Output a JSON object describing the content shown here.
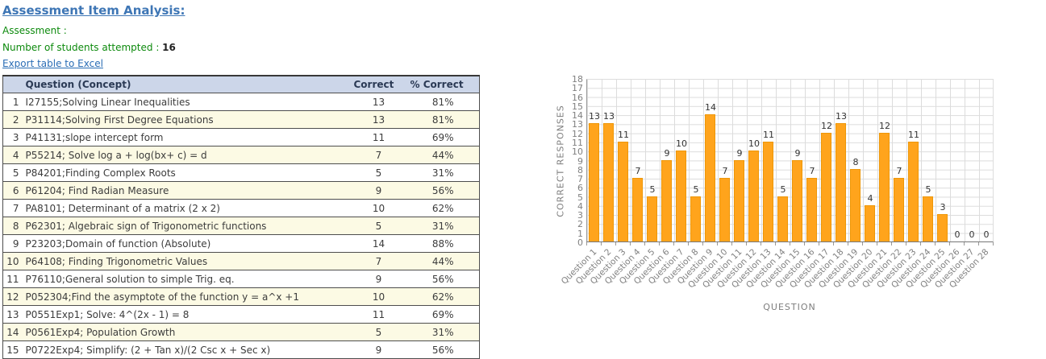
{
  "page": {
    "title": "Assessment Item Analysis:",
    "assessment_label": "Assessment :",
    "attempted_label": "Number of students attempted : ",
    "attempted_count": "16",
    "export_link": "Export table to Excel"
  },
  "colors": {
    "title_blue": "#3E76B5",
    "info_green": "#0D8A0D",
    "link_blue": "#2A6DB5",
    "table_header_bg": "#CCD6E9",
    "row_alt_bg": "#FCFAE4",
    "bar_orange": "#FFA41C"
  },
  "table": {
    "headers": {
      "question": "Question (Concept)",
      "correct": "Correct",
      "percent": "% Correct"
    },
    "rows": [
      {
        "num": "1",
        "question": "I27155;Solving Linear Inequalities",
        "correct": "13",
        "percent": "81%"
      },
      {
        "num": "2",
        "question": "P31114;Solving First Degree Equations",
        "correct": "13",
        "percent": "81%"
      },
      {
        "num": "3",
        "question": "P41131;slope intercept form",
        "correct": "11",
        "percent": "69%"
      },
      {
        "num": "4",
        "question": "P55214; Solve log a + log(bx+ c) = d",
        "correct": "7",
        "percent": "44%"
      },
      {
        "num": "5",
        "question": "P84201;Finding Complex Roots",
        "correct": "5",
        "percent": "31%"
      },
      {
        "num": "6",
        "question": "P61204; Find Radian Measure",
        "correct": "9",
        "percent": "56%"
      },
      {
        "num": "7",
        "question": "PA8101; Determinant of a matrix (2 x 2)",
        "correct": "10",
        "percent": "62%"
      },
      {
        "num": "8",
        "question": "P62301; Algebraic sign of Trigonometric functions",
        "correct": "5",
        "percent": "31%"
      },
      {
        "num": "9",
        "question": "P23203;Domain of function (Absolute)",
        "correct": "14",
        "percent": "88%"
      },
      {
        "num": "10",
        "question": "P64108; Finding Trigonometric Values",
        "correct": "7",
        "percent": "44%"
      },
      {
        "num": "11",
        "question": "P76110;General solution to simple Trig. eq.",
        "correct": "9",
        "percent": "56%"
      },
      {
        "num": "12",
        "question": "P052304;Find the asymptote of the function y = a^x +1",
        "correct": "10",
        "percent": "62%"
      },
      {
        "num": "13",
        "question": "P0551Exp1; Solve: 4^(2x - 1) = 8",
        "correct": "11",
        "percent": "69%"
      },
      {
        "num": "14",
        "question": "P0561Exp4; Population Growth",
        "correct": "5",
        "percent": "31%"
      },
      {
        "num": "15",
        "question": "P0722Exp4; Simplify: (2 + Tan x)/(2 Csc x + Sec x)",
        "correct": "9",
        "percent": "56%"
      }
    ]
  },
  "chart_data": {
    "type": "bar",
    "title": "",
    "xlabel": "QUESTION",
    "ylabel": "CORRECT RESPONSES",
    "categories": [
      "Question 1",
      "Question 2",
      "Question 3",
      "Question 4",
      "Question 5",
      "Question 6",
      "Question 7",
      "Question 8",
      "Question 9",
      "Question 10",
      "Question 11",
      "Question 12",
      "Question 13",
      "Question 14",
      "Question 15",
      "Question 16",
      "Question 17",
      "Question 18",
      "Question 19",
      "Question 20",
      "Question 21",
      "Question 22",
      "Question 23",
      "Question 24",
      "Question 25",
      "Question 26",
      "Question 27",
      "Question 28"
    ],
    "values": [
      13,
      13,
      11,
      7,
      5,
      9,
      10,
      5,
      14,
      7,
      9,
      10,
      11,
      5,
      9,
      7,
      12,
      13,
      8,
      4,
      12,
      7,
      11,
      5,
      3,
      0,
      0,
      0
    ],
    "ylim": [
      0,
      18
    ],
    "ytick_step": 1,
    "grid": true,
    "legend": "none",
    "bar_color": "#FFA41C",
    "value_labels": true
  }
}
